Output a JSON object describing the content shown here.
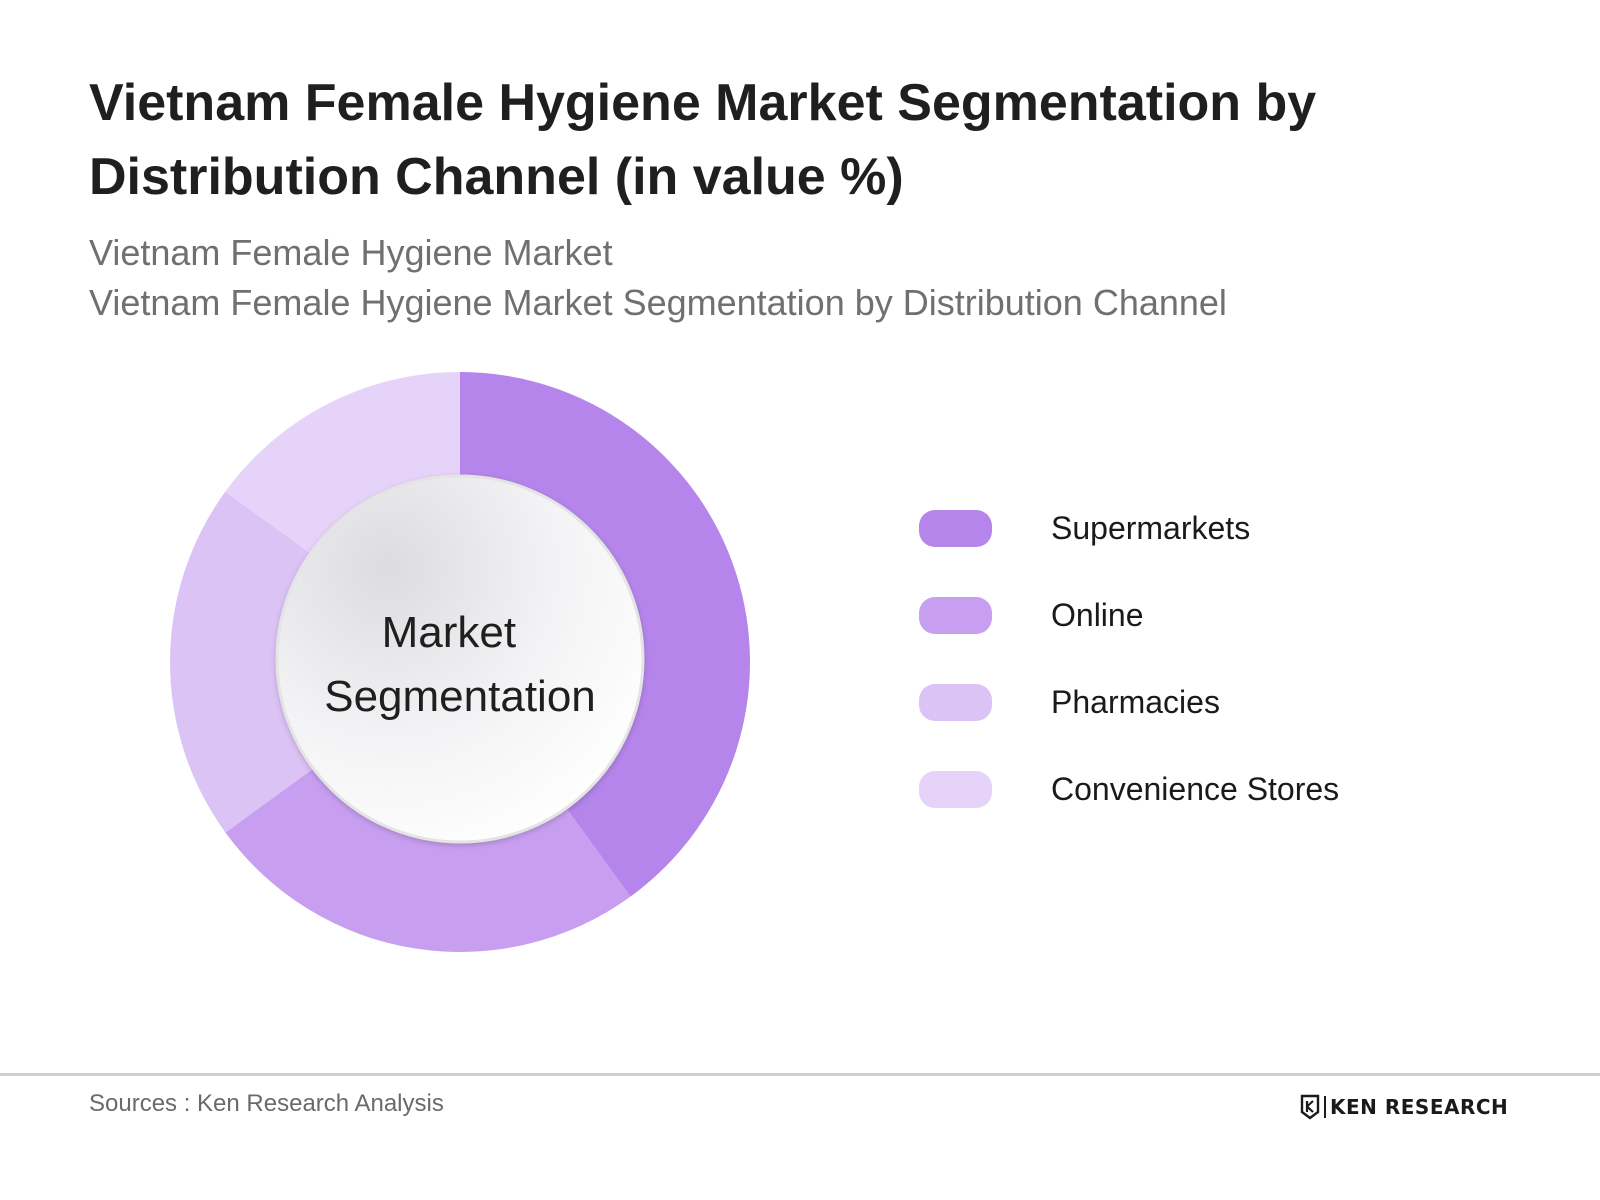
{
  "header": {
    "title": "Vietnam Female Hygiene Market Segmentation by Distribution Channel (in value %)",
    "subtitle_line1": "Vietnam Female Hygiene Market",
    "subtitle_line2": "Vietnam Female Hygiene Market Segmentation by Distribution Channel"
  },
  "chart_data": {
    "type": "pie",
    "donut": true,
    "center_label": [
      "Market",
      "Segmentation"
    ],
    "categories": [
      "Supermarkets",
      "Online",
      "Pharmacies",
      "Convenience Stores"
    ],
    "values": [
      40,
      25,
      20,
      15
    ],
    "colors": [
      "#b585eb",
      "#c89ff0",
      "#dcc3f6",
      "#e6d3f9"
    ],
    "legend_position": "right"
  },
  "footer": {
    "source": "Sources : Ken Research Analysis",
    "logo_text": "KEN RESEARCH"
  },
  "icons": {
    "logo": "ken-research-logo-icon"
  }
}
